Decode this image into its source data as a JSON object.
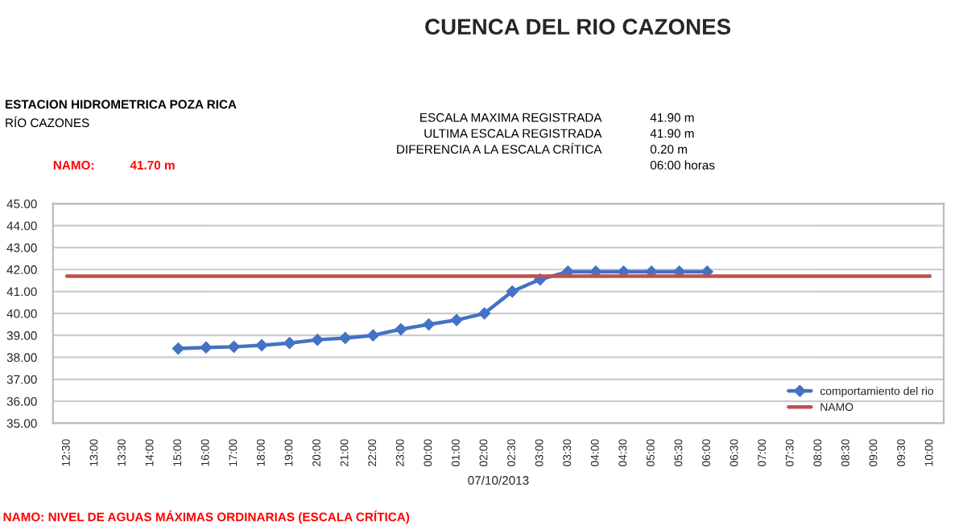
{
  "chart_data": {
    "type": "line",
    "title": "CUENCA DEL RIO CAZONES",
    "xlabel": "07/10/2013",
    "annotations": [
      "ESTACION HIDROMETRICA POZA RICA",
      "RÍO CAZONES",
      "ESCALA MAXIMA REGISTRADA",
      "41.90 m",
      "ULTIMA ESCALA REGISTRADA",
      "41.90 m",
      "DIFERENCIA A LA ESCALA CRÍTICA",
      "0.20 m",
      "NAMO:",
      "41.70 m",
      "06:00 horas",
      "NAMO: NIVEL DE AGUAS MÁXIMAS ORDINARIAS (ESCALA CRÍTICA)"
    ],
    "categories": [
      "12:30",
      "13:00",
      "13:30",
      "14:00",
      "15:00",
      "16:00",
      "17:00",
      "18:00",
      "19:00",
      "20:00",
      "21:00",
      "22:00",
      "23:00",
      "00:00",
      "01:00",
      "02:00",
      "02:30",
      "03:00",
      "03:30",
      "04:00",
      "04:30",
      "05:00",
      "05:30",
      "06:00",
      "06:30",
      "07:00",
      "07:30",
      "08:00",
      "08:30",
      "09:00",
      "09:30",
      "10:00"
    ],
    "series": [
      {
        "name": "comportamiento del rio",
        "color": "#4472c4",
        "marker": "diamond",
        "values": [
          null,
          null,
          null,
          null,
          38.4,
          38.45,
          38.48,
          38.55,
          38.65,
          38.8,
          38.88,
          39.0,
          39.28,
          39.5,
          39.7,
          40.0,
          41.0,
          41.55,
          41.9,
          41.9,
          41.9,
          41.9,
          41.9,
          41.9,
          null,
          null,
          null,
          null,
          null,
          null,
          null,
          null
        ]
      },
      {
        "name": "NAMO",
        "color": "#c0504d",
        "marker": "none",
        "values": [
          41.7,
          41.7,
          41.7,
          41.7,
          41.7,
          41.7,
          41.7,
          41.7,
          41.7,
          41.7,
          41.7,
          41.7,
          41.7,
          41.7,
          41.7,
          41.7,
          41.7,
          41.7,
          41.7,
          41.7,
          41.7,
          41.7,
          41.7,
          41.7,
          41.7,
          41.7,
          41.7,
          41.7,
          41.7,
          41.7,
          41.7,
          41.7
        ]
      }
    ],
    "ylim": [
      35,
      45
    ],
    "yticks": [
      {
        "value": 35,
        "label": "35.00"
      },
      {
        "value": 36,
        "label": "36.00"
      },
      {
        "value": 37,
        "label": "37.00"
      },
      {
        "value": 38,
        "label": "38.00"
      },
      {
        "value": 39,
        "label": "39.00"
      },
      {
        "value": 40,
        "label": "40.00"
      },
      {
        "value": 41,
        "label": "41.00"
      },
      {
        "value": 42,
        "label": "42.00"
      },
      {
        "value": 43,
        "label": "43.00"
      },
      {
        "value": 44,
        "label": "44.00"
      },
      {
        "value": 45,
        "label": "45.00"
      }
    ],
    "grid": "y",
    "legend": "bottom right",
    "line_style": "solid"
  }
}
